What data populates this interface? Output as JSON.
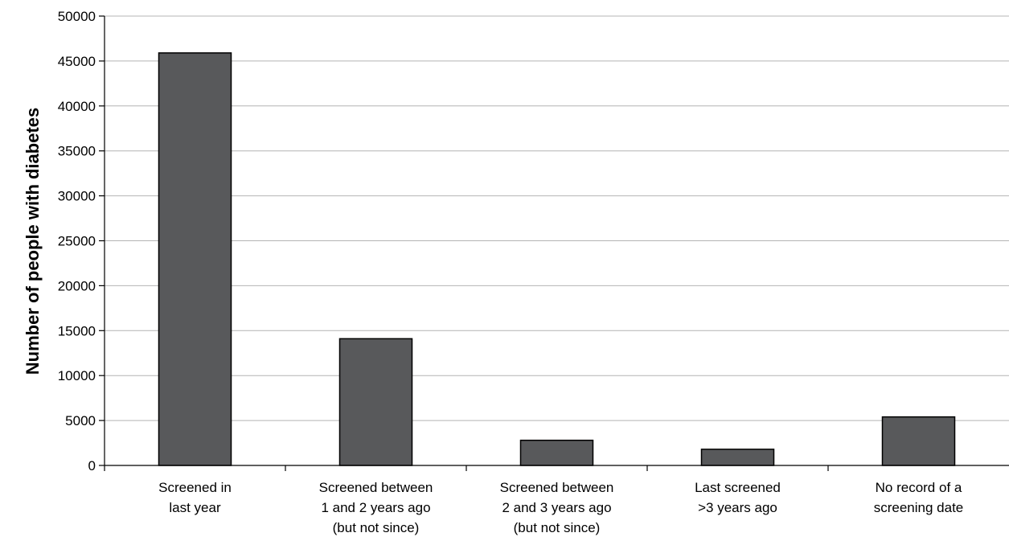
{
  "chart_data": {
    "type": "bar",
    "title": "",
    "xlabel": "",
    "ylabel": "Number of people with diabetes",
    "ylim": [
      0,
      50000
    ],
    "ytick_step": 5000,
    "grid": true,
    "bar_color": "#58595b",
    "yticks": [
      "0",
      "5000",
      "10000",
      "15000",
      "20000",
      "25000",
      "30000",
      "35000",
      "40000",
      "45000",
      "50000"
    ],
    "categories": [
      [
        "Screened in",
        "last year"
      ],
      [
        "Screened between",
        "1 and 2 years ago",
        "(but not since)"
      ],
      [
        "Screened between",
        "2 and 3 years ago",
        "(but not since)"
      ],
      [
        "Last screened",
        ">3 years ago"
      ],
      [
        "No record of a",
        "screening date"
      ]
    ],
    "values": [
      45900,
      14100,
      2800,
      1800,
      5400
    ]
  }
}
